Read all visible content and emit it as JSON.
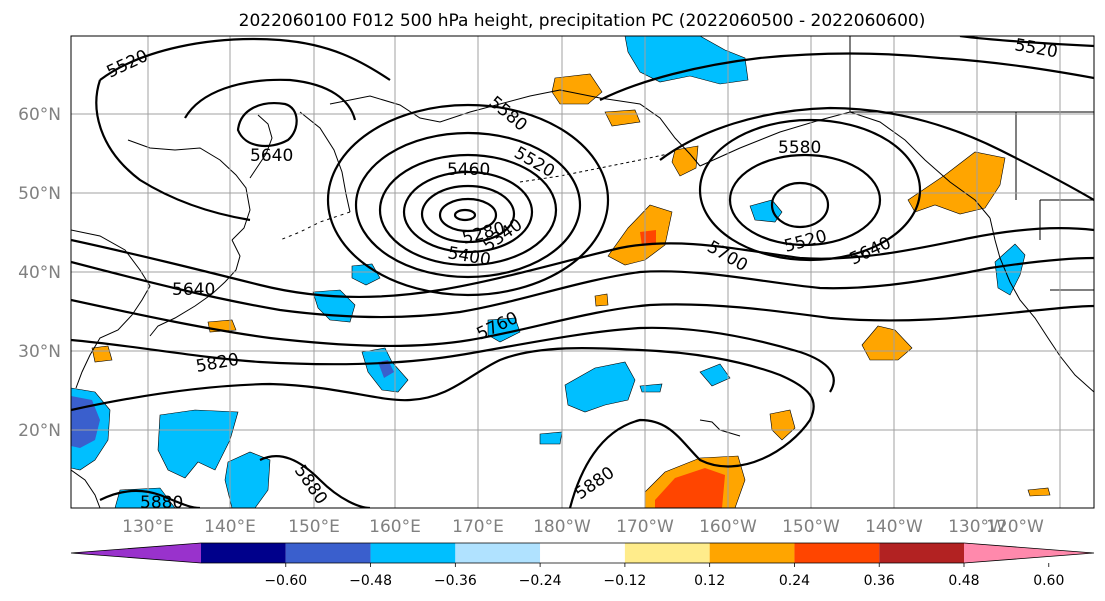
{
  "title": "2022060100 F012 500 hPa height, precipitation PC (2022060500 - 2022060600)",
  "lat_labels": [
    "60°N",
    "50°N",
    "40°N",
    "30°N",
    "20°N"
  ],
  "lon_labels": [
    "130°E",
    "140°E",
    "150°E",
    "160°E",
    "170°E",
    "180°W",
    "170°W",
    "160°W",
    "150°W",
    "140°W",
    "130°W",
    "120°W"
  ],
  "contour_labels": [
    "5520",
    "5640",
    "5580",
    "5460",
    "5520",
    "5280",
    "5340",
    "5400",
    "5580",
    "5700",
    "5520",
    "5640",
    "5640",
    "5760",
    "5820",
    "5880",
    "5880",
    "5880",
    "5520"
  ],
  "colorbar": {
    "colors": [
      "#9932CC",
      "#00008B",
      "#3A5FCD",
      "#00BFFF",
      "#B0E2FF",
      "#FFFFFF",
      "#FFEC8B",
      "#FFA500",
      "#FF4500",
      "#B22222",
      "#FF89AC"
    ],
    "tick_labels": [
      "−0.60",
      "−0.48",
      "−0.36",
      "−0.24",
      "−0.12",
      "0.12",
      "0.24",
      "0.36",
      "0.48",
      "0.60"
    ]
  }
}
